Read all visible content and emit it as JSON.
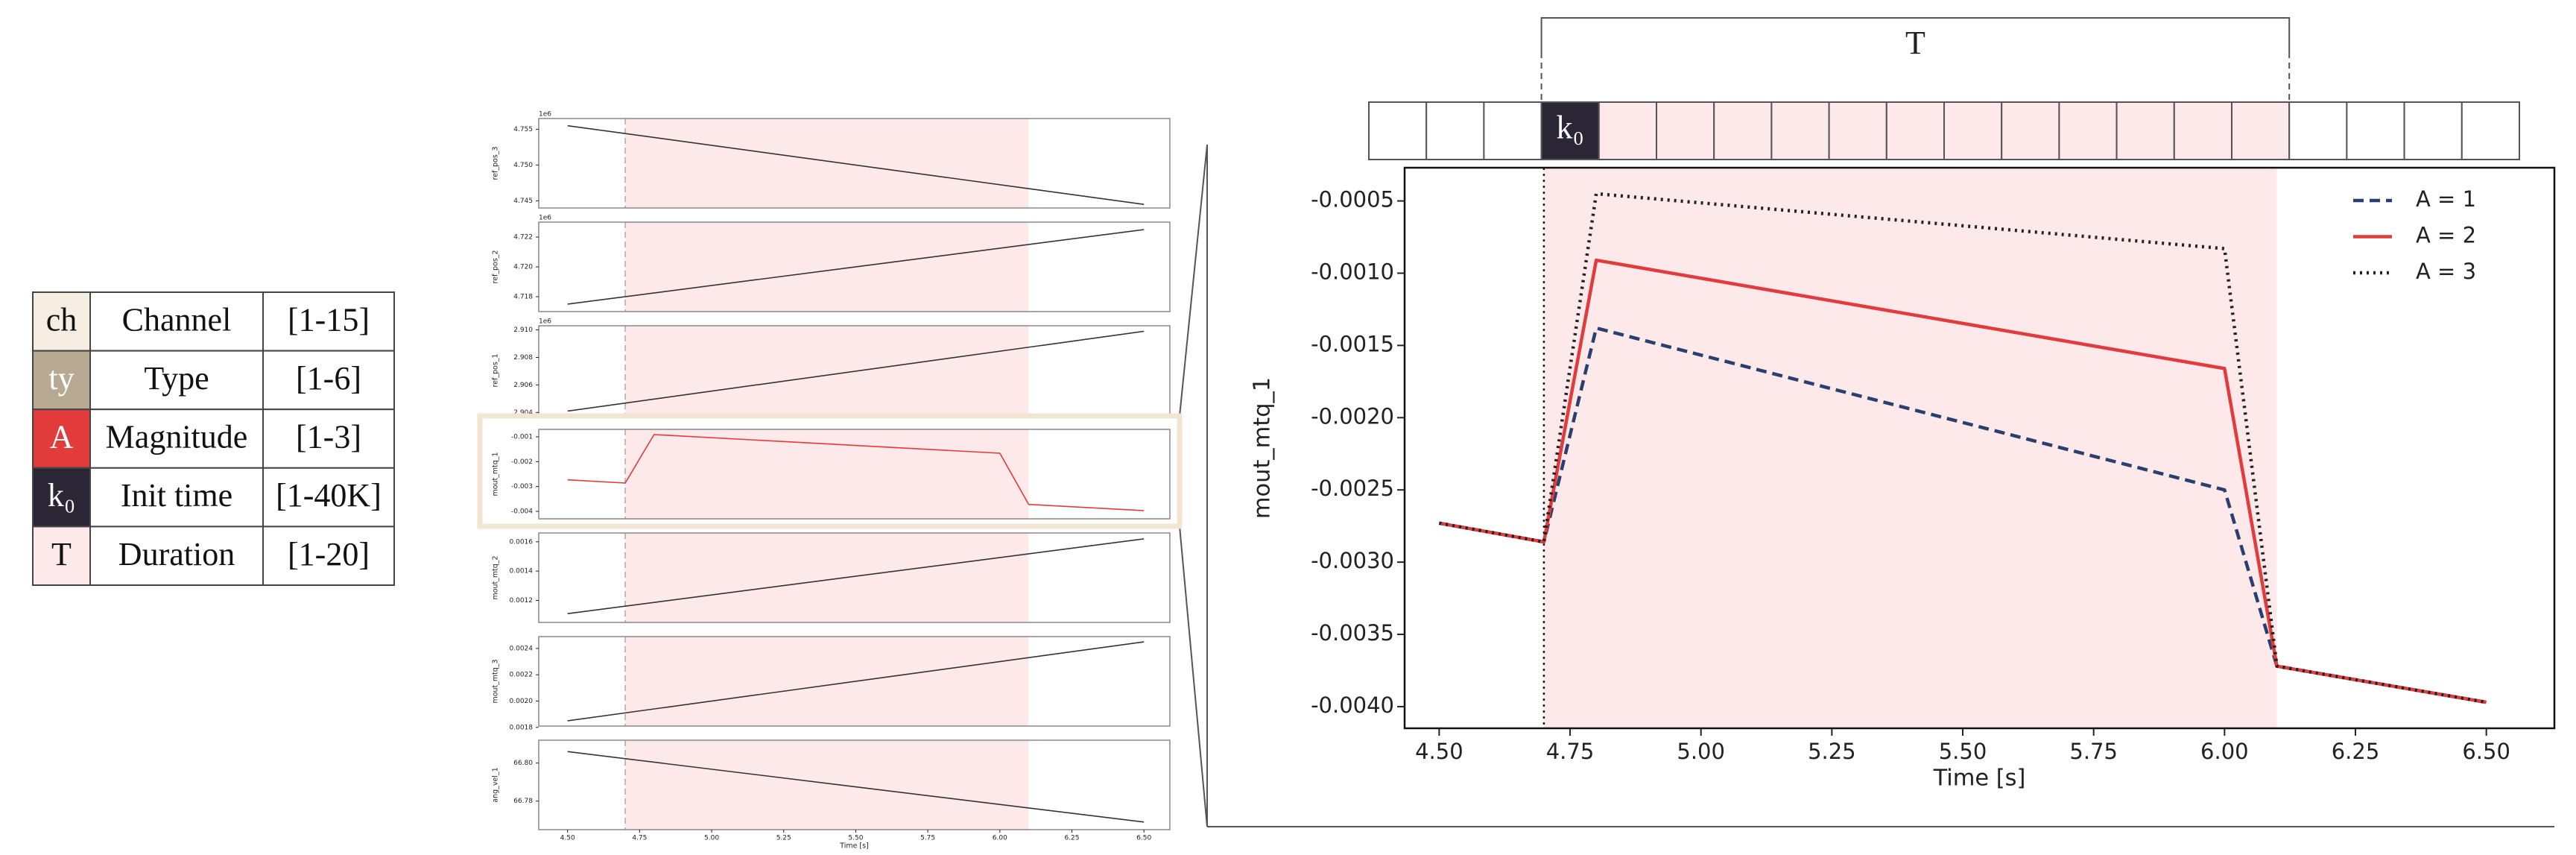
{
  "table": {
    "rows": [
      [
        "ch",
        "Channel",
        "[1-15]"
      ],
      [
        "ty",
        "Type",
        "[1-6]"
      ],
      [
        "A",
        "Magnitude",
        "[1-3]"
      ],
      [
        "k₀",
        "Init time",
        "[1-40K]"
      ],
      [
        "T",
        "Duration",
        "[1-20]"
      ]
    ],
    "colors": [
      "#f5ece2",
      "#b8a993",
      "#e23b3b",
      "#2b2636",
      "#fde8ea"
    ]
  },
  "timeline": {
    "token": "k₀",
    "duration_label": "T"
  },
  "chart_data": [
    {
      "type": "line",
      "ylabel": "ref_pos_3",
      "offset_label": "1e6",
      "x": [
        4.5,
        6.5
      ],
      "values": [
        4.7555,
        4.7445
      ],
      "color": "#333333",
      "xlim": [
        4.4,
        6.59
      ],
      "ylim": [
        4.744,
        4.7565
      ],
      "yticks": [
        4.755,
        {
          "value": 4.75,
          "label": "4.750"
        },
        4.745
      ],
      "highlight": [
        4.7,
        6.1
      ],
      "vline": 4.7
    },
    {
      "type": "line",
      "ylabel": "ref_pos_2",
      "offset_label": "1e6",
      "x": [
        4.5,
        6.5
      ],
      "values": [
        4.7175,
        4.7225
      ],
      "color": "#333333",
      "xlim": [
        4.4,
        6.59
      ],
      "ylim": [
        4.717,
        4.723
      ],
      "yticks": [
        4.722,
        {
          "value": 4.72,
          "label": "4.720"
        },
        4.718
      ],
      "highlight": [
        4.7,
        6.1
      ],
      "vline": 4.7
    },
    {
      "type": "line",
      "ylabel": "ref_pos_1",
      "offset_label": "1e6",
      "x": [
        4.5,
        6.5
      ],
      "values": [
        2.9041,
        2.9099
      ],
      "color": "#333333",
      "xlim": [
        4.4,
        6.59
      ],
      "ylim": [
        2.9038,
        2.9103
      ],
      "yticks": [
        {
          "value": 2.91,
          "label": "2.910"
        },
        2.908,
        2.906,
        2.904
      ],
      "highlight": [
        4.7,
        6.1
      ],
      "vline": 4.7
    },
    {
      "type": "line",
      "ylabel": "mout_mtq_1",
      "x": [
        4.5,
        4.7,
        4.8,
        6.0,
        6.1,
        6.5
      ],
      "values": [
        -0.00273,
        -0.00286,
        -0.00091,
        -0.00166,
        -0.00372,
        -0.00397
      ],
      "color": "#e23b3b",
      "xlim": [
        4.4,
        6.59
      ],
      "ylim": [
        -0.0043,
        -0.0007
      ],
      "yticks": [
        -0.001,
        -0.002,
        -0.003,
        -0.004
      ],
      "highlight": [
        4.7,
        6.1
      ],
      "vline": 4.7,
      "highlighted": true
    },
    {
      "type": "line",
      "ylabel": "mout_mtq_2",
      "x": [
        4.5,
        6.5
      ],
      "values": [
        0.00111,
        0.00162
      ],
      "color": "#333333",
      "xlim": [
        4.4,
        6.59
      ],
      "ylim": [
        0.00105,
        0.00166
      ],
      "yticks": [
        0.0016,
        0.0014,
        0.0012
      ],
      "highlight": [
        4.7,
        6.1
      ],
      "vline": 4.7
    },
    {
      "type": "line",
      "ylabel": "mout_mtq_3",
      "x": [
        4.5,
        6.5
      ],
      "values": [
        0.00185,
        0.00245
      ],
      "color": "#333333",
      "xlim": [
        4.4,
        6.59
      ],
      "ylim": [
        0.00181,
        0.00249
      ],
      "yticks": [
        0.0024,
        0.0022,
        {
          "value": 0.002,
          "label": "0.0020"
        },
        0.0018
      ],
      "highlight": [
        4.7,
        6.1
      ],
      "vline": 4.7
    },
    {
      "type": "line",
      "ylabel": "ang_vel_1",
      "x": [
        4.5,
        6.5
      ],
      "values": [
        66.806,
        66.769
      ],
      "color": "#333333",
      "xlim": [
        4.4,
        6.59
      ],
      "ylim": [
        66.765,
        66.812
      ],
      "yticks": [
        {
          "value": 66.8,
          "label": "66.80"
        },
        66.78
      ],
      "highlight": [
        4.7,
        6.1
      ],
      "vline": 4.7,
      "xlabel": "Time [s]",
      "xticks": [
        {
          "value": 4.5,
          "label": "4.50"
        },
        4.75,
        {
          "value": 5.0,
          "label": "5.00"
        },
        5.25,
        {
          "value": 5.5,
          "label": "5.50"
        },
        5.75,
        {
          "value": 6.0,
          "label": "6.00"
        },
        6.25,
        {
          "value": 6.5,
          "label": "6.50"
        }
      ]
    },
    {
      "type": "line",
      "xlabel": "Time [s]",
      "ylabel": "mout_mtq_1",
      "x": [
        4.5,
        4.7,
        4.8,
        6.0,
        6.1,
        6.5
      ],
      "series": [
        {
          "name": "A = 1",
          "color": "#2b3f6e",
          "style": "dashed",
          "values": [
            -0.00273,
            -0.00286,
            -0.00138,
            -0.0025,
            -0.00372,
            -0.00397
          ]
        },
        {
          "name": "A = 2",
          "color": "#e23b3b",
          "style": "solid",
          "values": [
            -0.00273,
            -0.00286,
            -0.00091,
            -0.00166,
            -0.00372,
            -0.00397
          ]
        },
        {
          "name": "A = 3",
          "color": "#222222",
          "style": "dotted",
          "values": [
            -0.00273,
            -0.00286,
            -0.00045,
            -0.00083,
            -0.00372,
            -0.00397
          ]
        }
      ],
      "xlim": [
        4.434,
        6.63
      ],
      "ylim": [
        -0.00415,
        -0.00027
      ],
      "xticks": [
        {
          "value": 4.5,
          "label": "4.50"
        },
        4.75,
        {
          "value": 5.0,
          "label": "5.00"
        },
        5.25,
        {
          "value": 5.5,
          "label": "5.50"
        },
        5.75,
        {
          "value": 6.0,
          "label": "6.00"
        },
        6.25,
        {
          "value": 6.5,
          "label": "6.50"
        }
      ],
      "yticks": [
        -0.0005,
        {
          "value": -0.001,
          "label": "-0.0010"
        },
        -0.0015,
        {
          "value": -0.002,
          "label": "-0.0020"
        },
        -0.0025,
        {
          "value": -0.003,
          "label": "-0.0030"
        },
        -0.0035,
        {
          "value": -0.004,
          "label": "-0.0040"
        }
      ],
      "highlight": [
        4.7,
        6.1
      ],
      "vline": 4.7,
      "legend": "upper right"
    }
  ]
}
